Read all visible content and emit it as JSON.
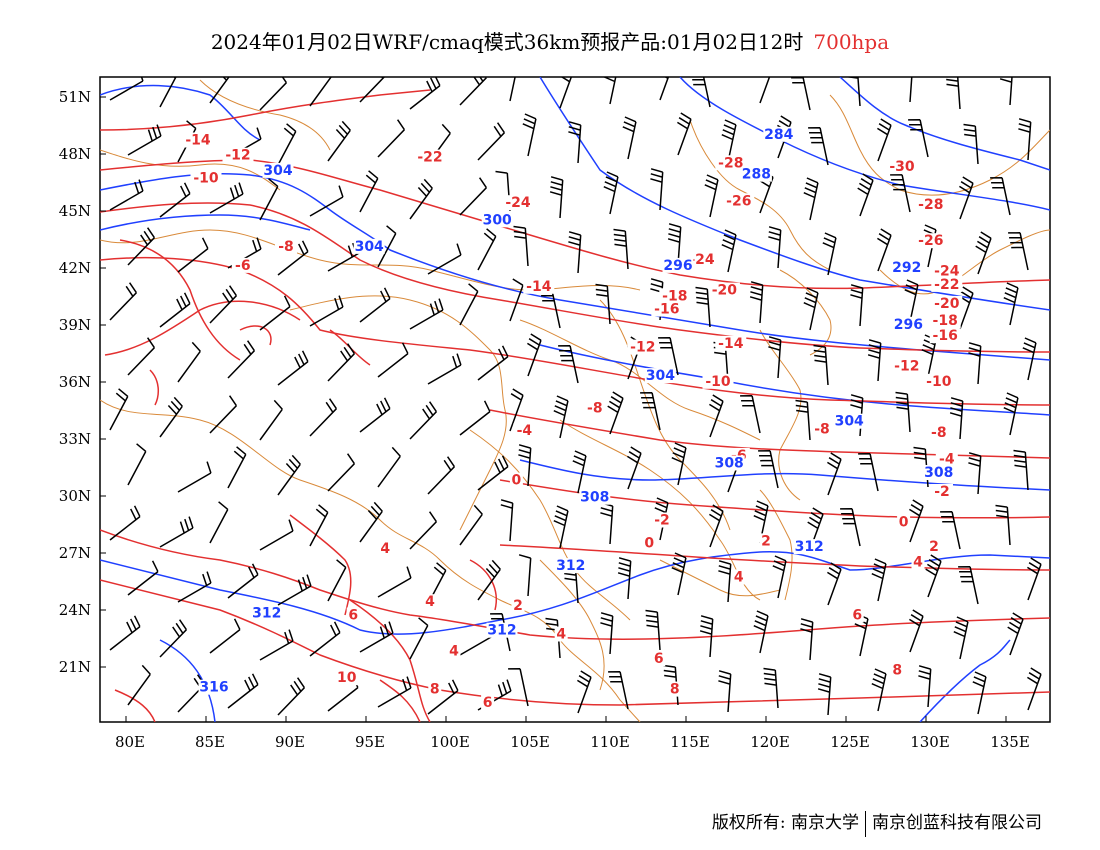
{
  "title": {
    "text": "2024年01月02日WRF/cmaq模式36km预报产品:01月02日12时",
    "level": "700hpa"
  },
  "footer": {
    "left": "版权所有: 南京大学",
    "right": "南京创蓝科技有限公司"
  },
  "axes": {
    "x_ticks": [
      "80E",
      "85E",
      "90E",
      "95E",
      "100E",
      "105E",
      "110E",
      "115E",
      "120E",
      "125E",
      "130E",
      "135E"
    ],
    "y_ticks": [
      "51N",
      "48N",
      "45N",
      "42N",
      "39N",
      "36N",
      "33N",
      "30N",
      "27N",
      "24N",
      "21N"
    ],
    "lon_range": [
      78,
      138
    ],
    "lat_range": [
      18,
      52
    ]
  },
  "colors": {
    "temperature": "#e33030",
    "geopotential": "#2040ff",
    "border": "#d98a3a",
    "wind": "#000000"
  },
  "temperature_labels": [
    {
      "text": "-14",
      "lon": 84.5,
      "lat": 48.5
    },
    {
      "text": "-12",
      "lon": 87,
      "lat": 47.7
    },
    {
      "text": "-10",
      "lon": 85,
      "lat": 46.5
    },
    {
      "text": "-22",
      "lon": 99,
      "lat": 47.6
    },
    {
      "text": "-24",
      "lon": 104.5,
      "lat": 45.2
    },
    {
      "text": "-28",
      "lon": 117.8,
      "lat": 47.3
    },
    {
      "text": "-30",
      "lon": 128.5,
      "lat": 47.1
    },
    {
      "text": "-26",
      "lon": 118.3,
      "lat": 45.3
    },
    {
      "text": "-28",
      "lon": 130.3,
      "lat": 45.1
    },
    {
      "text": "-26",
      "lon": 130.3,
      "lat": 43.2
    },
    {
      "text": "-24",
      "lon": 116,
      "lat": 42.2
    },
    {
      "text": "-24",
      "lon": 131.3,
      "lat": 41.6
    },
    {
      "text": "-22",
      "lon": 131.3,
      "lat": 40.9
    },
    {
      "text": "-20",
      "lon": 117.4,
      "lat": 40.6
    },
    {
      "text": "-20",
      "lon": 131.3,
      "lat": 39.9
    },
    {
      "text": "-18",
      "lon": 114.3,
      "lat": 40.3
    },
    {
      "text": "-18",
      "lon": 131.2,
      "lat": 39.0
    },
    {
      "text": "-16",
      "lon": 113.8,
      "lat": 39.6
    },
    {
      "text": "-16",
      "lon": 131.2,
      "lat": 38.2
    },
    {
      "text": "-14",
      "lon": 105.8,
      "lat": 40.8
    },
    {
      "text": "-14",
      "lon": 117.8,
      "lat": 37.8
    },
    {
      "text": "-12",
      "lon": 112.3,
      "lat": 37.6
    },
    {
      "text": "-12",
      "lon": 128.8,
      "lat": 36.6
    },
    {
      "text": "-10",
      "lon": 117.0,
      "lat": 35.8
    },
    {
      "text": "-10",
      "lon": 130.8,
      "lat": 35.8
    },
    {
      "text": "-8",
      "lon": 90,
      "lat": 42.9
    },
    {
      "text": "-8",
      "lon": 109.3,
      "lat": 34.4
    },
    {
      "text": "-8",
      "lon": 123.5,
      "lat": 33.3
    },
    {
      "text": "-8",
      "lon": 130.8,
      "lat": 33.1
    },
    {
      "text": "-6",
      "lon": 87.3,
      "lat": 41.9
    },
    {
      "text": "-6",
      "lon": 118.3,
      "lat": 31.9
    },
    {
      "text": "-4",
      "lon": 104.9,
      "lat": 33.2
    },
    {
      "text": "-4",
      "lon": 131.3,
      "lat": 31.7
    },
    {
      "text": "-2",
      "lon": 131,
      "lat": 30.0
    },
    {
      "text": "-2",
      "lon": 113.5,
      "lat": 28.5
    },
    {
      "text": "0",
      "lon": 104.4,
      "lat": 30.6
    },
    {
      "text": "0",
      "lon": 112.7,
      "lat": 27.3
    },
    {
      "text": "0",
      "lon": 128.6,
      "lat": 28.4
    },
    {
      "text": "2",
      "lon": 120,
      "lat": 27.4
    },
    {
      "text": "2",
      "lon": 130.5,
      "lat": 27.1
    },
    {
      "text": "2",
      "lon": 104.5,
      "lat": 24.0
    },
    {
      "text": "4",
      "lon": 96.2,
      "lat": 27.0
    },
    {
      "text": "4",
      "lon": 99.0,
      "lat": 24.2
    },
    {
      "text": "4",
      "lon": 118.3,
      "lat": 25.5
    },
    {
      "text": "4",
      "lon": 107.2,
      "lat": 22.5
    },
    {
      "text": "4",
      "lon": 100.5,
      "lat": 21.6
    },
    {
      "text": "4",
      "lon": 129.5,
      "lat": 26.3
    },
    {
      "text": "6",
      "lon": 94.2,
      "lat": 23.5
    },
    {
      "text": "6",
      "lon": 125.7,
      "lat": 23.5
    },
    {
      "text": "6",
      "lon": 113.3,
      "lat": 21.2
    },
    {
      "text": "6",
      "lon": 102.6,
      "lat": 18.9
    },
    {
      "text": "8",
      "lon": 99.3,
      "lat": 19.6
    },
    {
      "text": "8",
      "lon": 114.3,
      "lat": 19.6
    },
    {
      "text": "8",
      "lon": 128.2,
      "lat": 20.6
    },
    {
      "text": "10",
      "lon": 93.8,
      "lat": 20.2
    }
  ],
  "geopotential_labels": [
    {
      "text": "284",
      "lon": 120.8,
      "lat": 48.8
    },
    {
      "text": "288",
      "lon": 119.4,
      "lat": 46.7
    },
    {
      "text": "300",
      "lon": 103.2,
      "lat": 44.3
    },
    {
      "text": "304",
      "lon": 89.5,
      "lat": 46.9
    },
    {
      "text": "304",
      "lon": 95.2,
      "lat": 42.9
    },
    {
      "text": "296",
      "lon": 114.5,
      "lat": 41.9
    },
    {
      "text": "292",
      "lon": 128.8,
      "lat": 41.8
    },
    {
      "text": "296",
      "lon": 128.9,
      "lat": 38.8
    },
    {
      "text": "304",
      "lon": 113.4,
      "lat": 36.1
    },
    {
      "text": "304",
      "lon": 125.2,
      "lat": 33.7
    },
    {
      "text": "308",
      "lon": 109.3,
      "lat": 29.7
    },
    {
      "text": "308",
      "lon": 117.7,
      "lat": 31.5
    },
    {
      "text": "308",
      "lon": 130.8,
      "lat": 31.0
    },
    {
      "text": "312",
      "lon": 107.8,
      "lat": 26.1
    },
    {
      "text": "312",
      "lon": 122.7,
      "lat": 27.1
    },
    {
      "text": "312",
      "lon": 88.8,
      "lat": 23.6
    },
    {
      "text": "312",
      "lon": 103.5,
      "lat": 22.7
    },
    {
      "text": "316",
      "lon": 85.5,
      "lat": 19.7
    }
  ]
}
